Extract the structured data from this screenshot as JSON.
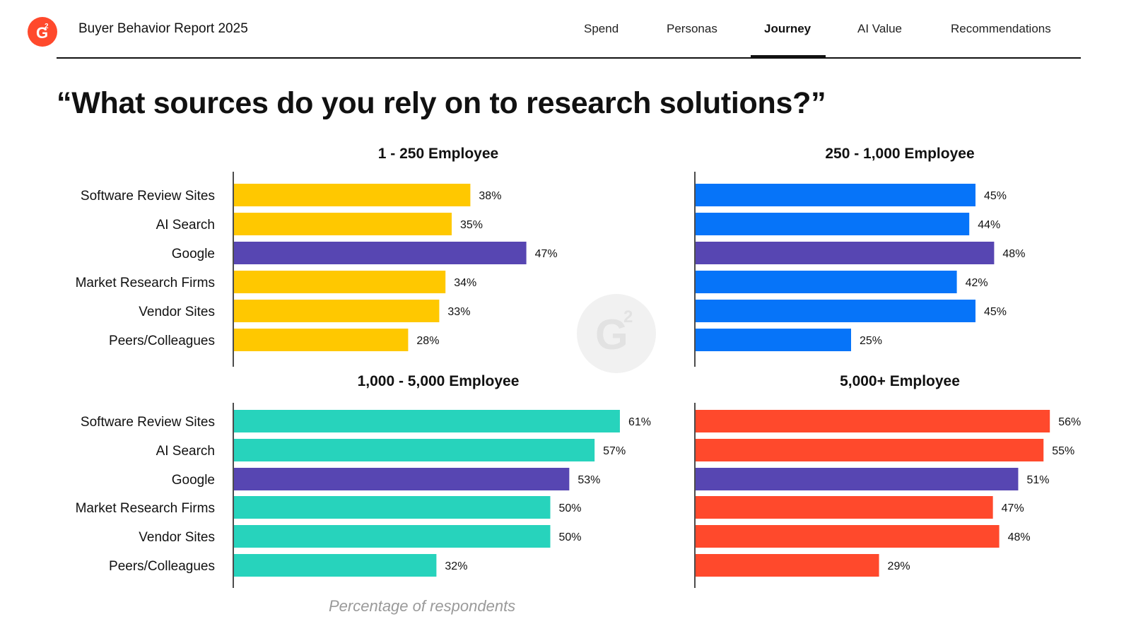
{
  "header": {
    "report_title": "Buyer Behavior Report 2025",
    "logo_icon": "g2-logo-icon",
    "tabs": [
      {
        "label": "Spend",
        "active": false
      },
      {
        "label": "Personas",
        "active": false
      },
      {
        "label": "Journey",
        "active": true
      },
      {
        "label": "AI Value",
        "active": false
      },
      {
        "label": "Recommendations",
        "active": false
      }
    ]
  },
  "question": "“What sources do you rely on to research solutions?”",
  "footnote": "Percentage of respondents",
  "colors": {
    "yellow": "#ffc800",
    "blue": "#0674f9",
    "teal": "#27d3bc",
    "red": "#ff492c",
    "purple": "#5746b2",
    "brand": "#ff492c"
  },
  "chart_data": [
    {
      "type": "bar",
      "orientation": "horizontal",
      "title": "1 - 250 Employee",
      "categories": [
        "Software Review Sites",
        "AI Search",
        "Google",
        "Market Research Firms",
        "Vendor Sites",
        "Peers/Colleagues"
      ],
      "values": [
        38,
        35,
        47,
        34,
        33,
        28
      ],
      "value_labels": [
        "38%",
        "35%",
        "47%",
        "34%",
        "33%",
        "28%"
      ],
      "bar_color": "#ffc800",
      "highlight_category": "Google",
      "highlight_color": "#5746b2"
    },
    {
      "type": "bar",
      "orientation": "horizontal",
      "title": "250 - 1,000 Employee",
      "categories": [
        "Software Review Sites",
        "AI Search",
        "Google",
        "Market Research Firms",
        "Vendor Sites",
        "Peers/Colleagues"
      ],
      "values": [
        45,
        44,
        48,
        42,
        45,
        25
      ],
      "value_labels": [
        "45%",
        "44%",
        "48%",
        "42%",
        "45%",
        "25%"
      ],
      "bar_color": "#0674f9",
      "highlight_category": "Google",
      "highlight_color": "#5746b2"
    },
    {
      "type": "bar",
      "orientation": "horizontal",
      "title": "1,000 - 5,000 Employee",
      "categories": [
        "Software Review Sites",
        "AI Search",
        "Google",
        "Market Research Firms",
        "Vendor Sites",
        "Peers/Colleagues"
      ],
      "values": [
        61,
        57,
        53,
        50,
        50,
        32
      ],
      "value_labels": [
        "61%",
        "57%",
        "53%",
        "50%",
        "50%",
        "32%"
      ],
      "bar_color": "#27d3bc",
      "highlight_category": "Google",
      "highlight_color": "#5746b2"
    },
    {
      "type": "bar",
      "orientation": "horizontal",
      "title": "5,000+ Employee",
      "categories": [
        "Software Review Sites",
        "AI Search",
        "Google",
        "Market Research Firms",
        "Vendor Sites",
        "Peers/Colleagues"
      ],
      "values": [
        56,
        55,
        51,
        47,
        48,
        29
      ],
      "value_labels": [
        "56%",
        "55%",
        "51%",
        "47%",
        "48%",
        "29%"
      ],
      "bar_color": "#ff492c",
      "highlight_category": "Google",
      "highlight_color": "#5746b2"
    }
  ]
}
